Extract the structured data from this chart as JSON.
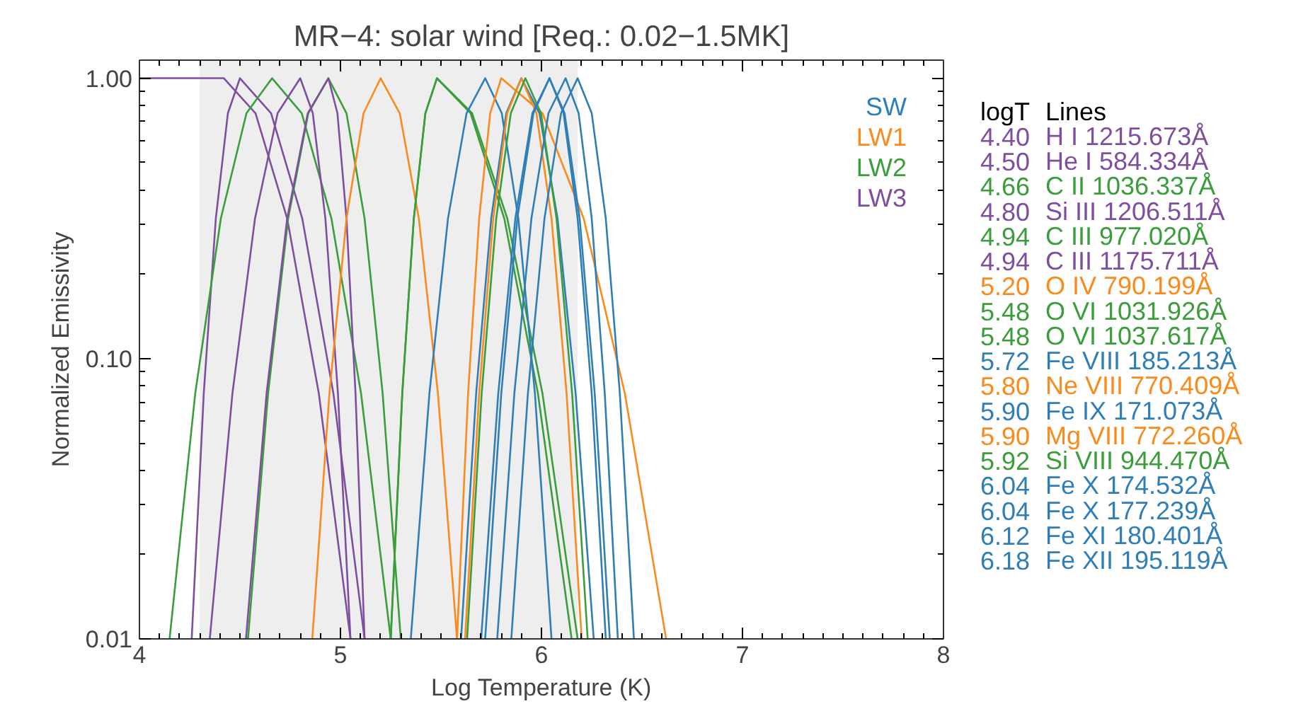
{
  "chart_data": {
    "type": "line",
    "title": "MR−4: solar wind [Req.: 0.02−1.5MK]",
    "xlabel": "Log Temperature (K)",
    "ylabel": "Normalized Emissivity",
    "log": "y",
    "xlim": [
      4,
      8
    ],
    "xticks": [
      4,
      5,
      6,
      7,
      8
    ],
    "ylim": [
      0.01,
      1.16
    ],
    "yticks": [
      {
        "value": 0.01,
        "label": "0.01"
      },
      {
        "value": 0.1,
        "label": "0.10"
      },
      {
        "value": 1,
        "label": "1.00"
      }
    ],
    "bands": [
      {
        "axis": "x",
        "from": 4.3,
        "to": 6.18,
        "color": "#eeeeee"
      }
    ],
    "annotations": [
      "SW",
      "LW1",
      "LW2",
      "LW3",
      "logT",
      "Lines",
      "4.40",
      "4.50",
      "4.66",
      "4.80",
      "4.94",
      "4.94",
      "5.20",
      "5.48",
      "5.48",
      "5.72",
      "5.80",
      "5.90",
      "5.90",
      "5.92",
      "6.04",
      "6.04",
      "6.12",
      "6.18"
    ],
    "series": [
      {
        "name": "H I 1215.673Å",
        "color": "#7f4f9f",
        "x": [
          4.0,
          4.42,
          4.5775,
          4.735,
          4.8925,
          5.05
        ],
        "values": [
          1,
          1,
          0.75,
          0.316,
          0.075,
          0.01
        ]
      },
      {
        "name": "He I 584.334Å",
        "color": "#7f4f9f",
        "x": [
          4.26,
          4.32,
          4.38,
          4.44,
          4.5,
          4.655,
          4.81,
          4.965,
          5.12
        ],
        "values": [
          0.01,
          0.075,
          0.316,
          0.75,
          1,
          0.75,
          0.316,
          0.075,
          0.01
        ]
      },
      {
        "name": "C II 1036.337Å",
        "color": "#3b9d3b",
        "x": [
          4.15,
          4.2775,
          4.405,
          4.5325,
          4.66,
          4.8075,
          4.955,
          5.1025,
          5.25
        ],
        "values": [
          0.01,
          0.075,
          0.316,
          0.75,
          1,
          0.75,
          0.316,
          0.075,
          0.01
        ]
      },
      {
        "name": "Si III 1206.511Å",
        "color": "#7f4f9f",
        "x": [
          4.35,
          4.4625,
          4.575,
          4.6875,
          4.8,
          4.8625,
          4.925,
          4.9875,
          5.05
        ],
        "values": [
          0.01,
          0.075,
          0.316,
          0.75,
          1,
          0.75,
          0.316,
          0.075,
          0.01
        ]
      },
      {
        "name": "C III 977.020Å",
        "color": "#3b9d3b",
        "x": [
          4.54,
          4.64,
          4.74,
          4.84,
          4.94,
          5.03,
          5.12,
          5.21,
          5.3
        ],
        "values": [
          0.01,
          0.075,
          0.316,
          0.75,
          1,
          0.75,
          0.316,
          0.075,
          0.01
        ]
      },
      {
        "name": "C III 1175.711Å",
        "color": "#7f4f9f",
        "x": [
          4.53,
          4.6325,
          4.735,
          4.8375,
          4.94,
          4.985,
          5.03,
          5.075,
          5.12
        ],
        "values": [
          0.01,
          0.075,
          0.316,
          0.75,
          1,
          0.75,
          0.316,
          0.075,
          0.01
        ]
      },
      {
        "name": "O IV 790.199Å",
        "color": "#fb8a1c",
        "x": [
          4.86,
          4.945,
          5.03,
          5.115,
          5.2,
          5.295,
          5.39,
          5.485,
          5.58
        ],
        "values": [
          0.01,
          0.075,
          0.316,
          0.75,
          1,
          0.75,
          0.316,
          0.075,
          0.01
        ]
      },
      {
        "name": "O VI 1031.926Å",
        "color": "#3b9d3b",
        "x": [
          5.25,
          5.3075,
          5.365,
          5.4225,
          5.48,
          5.655,
          5.83,
          6.005,
          6.18
        ],
        "values": [
          0.01,
          0.075,
          0.316,
          0.75,
          1,
          0.75,
          0.316,
          0.075,
          0.01
        ]
      },
      {
        "name": "O VI 1037.617Å",
        "color": "#3b9d3b",
        "x": [
          5.25,
          5.3075,
          5.365,
          5.4225,
          5.48,
          5.6475,
          5.815,
          5.9825,
          6.15
        ],
        "values": [
          0.01,
          0.075,
          0.316,
          0.75,
          1,
          0.75,
          0.316,
          0.075,
          0.01
        ]
      },
      {
        "name": "Fe VIII 185.213Å",
        "color": "#2f7fb6",
        "x": [
          5.35,
          5.4425,
          5.535,
          5.6275,
          5.72,
          5.8025,
          5.885,
          5.9675,
          6.05
        ],
        "values": [
          0.01,
          0.075,
          0.316,
          0.75,
          1,
          0.75,
          0.316,
          0.075,
          0.01
        ]
      },
      {
        "name": "Ne VIII 770.409Å",
        "color": "#fb8a1c",
        "x": [
          5.58,
          5.635,
          5.69,
          5.745,
          5.8,
          6.005,
          6.21,
          6.415,
          6.62
        ],
        "values": [
          0.01,
          0.075,
          0.316,
          0.75,
          1,
          0.75,
          0.316,
          0.075,
          0.01
        ]
      },
      {
        "name": "Fe IX 171.073Å",
        "color": "#2f7fb6",
        "x": [
          5.6,
          5.675,
          5.75,
          5.825,
          5.9,
          5.99,
          6.08,
          6.17,
          6.26
        ],
        "values": [
          0.01,
          0.075,
          0.316,
          0.75,
          1,
          0.75,
          0.316,
          0.075,
          0.01
        ]
      },
      {
        "name": "Mg VIII 772.260Å",
        "color": "#fb8a1c",
        "x": [
          5.62,
          5.69,
          5.76,
          5.83,
          5.9,
          5.975,
          6.05,
          6.125,
          6.2
        ],
        "values": [
          0.01,
          0.075,
          0.316,
          0.75,
          1,
          0.75,
          0.316,
          0.075,
          0.01
        ]
      },
      {
        "name": "Si VIII 944.470Å",
        "color": "#3b9d3b",
        "x": [
          5.63,
          5.7025,
          5.775,
          5.8475,
          5.92,
          5.9975,
          6.075,
          6.1525,
          6.23
        ],
        "values": [
          0.01,
          0.075,
          0.316,
          0.75,
          1,
          0.75,
          0.316,
          0.075,
          0.01
        ]
      },
      {
        "name": "Fe X 174.532Å",
        "color": "#2f7fb6",
        "x": [
          5.7,
          5.785,
          5.87,
          5.955,
          6.04,
          6.11,
          6.18,
          6.25,
          6.32
        ],
        "values": [
          0.01,
          0.075,
          0.316,
          0.75,
          1,
          0.75,
          0.316,
          0.075,
          0.01
        ]
      },
      {
        "name": "Fe X 177.239Å",
        "color": "#2f7fb6",
        "x": [
          5.72,
          5.8,
          5.88,
          5.96,
          6.04,
          6.115,
          6.19,
          6.265,
          6.34
        ],
        "values": [
          0.01,
          0.075,
          0.316,
          0.75,
          1,
          0.75,
          0.316,
          0.075,
          0.01
        ]
      },
      {
        "name": "Fe XI 180.401Å",
        "color": "#2f7fb6",
        "x": [
          5.78,
          5.865,
          5.95,
          6.035,
          6.12,
          6.185,
          6.25,
          6.315,
          6.38
        ],
        "values": [
          0.01,
          0.075,
          0.316,
          0.75,
          1,
          0.75,
          0.316,
          0.075,
          0.01
        ]
      },
      {
        "name": "Fe XII 195.119Å",
        "color": "#2f7fb6",
        "x": [
          5.85,
          5.9325,
          6.015,
          6.0975,
          6.18,
          6.25,
          6.32,
          6.39,
          6.46
        ],
        "values": [
          0.01,
          0.075,
          0.316,
          0.75,
          1,
          0.75,
          0.316,
          0.075,
          0.01
        ]
      }
    ]
  }
}
